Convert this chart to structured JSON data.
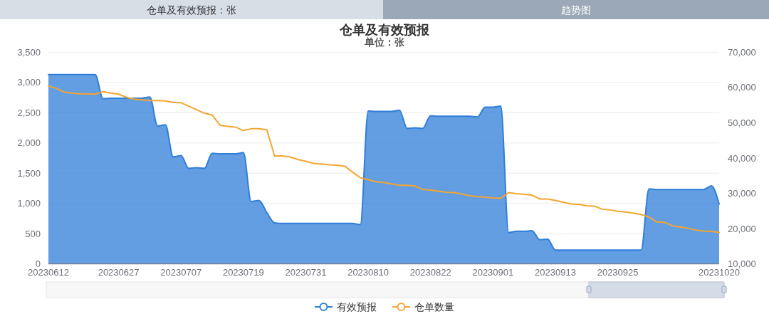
{
  "chart_data": {
    "type": "area",
    "title": "仓单及有效预报",
    "subtitle": "单位：张",
    "annotations": [
      "仓单及有效预报：张",
      "趋势图"
    ],
    "categories": [
      "20230612",
      null,
      null,
      null,
      null,
      null,
      null,
      null,
      null,
      "20230627",
      null,
      null,
      null,
      null,
      null,
      null,
      null,
      "20230707",
      null,
      null,
      null,
      null,
      null,
      null,
      null,
      "20230719",
      null,
      null,
      null,
      null,
      null,
      null,
      null,
      "20230731",
      null,
      null,
      null,
      null,
      null,
      null,
      null,
      "20230810",
      null,
      null,
      null,
      null,
      null,
      null,
      null,
      "20230822",
      null,
      null,
      null,
      null,
      null,
      null,
      null,
      "20230901",
      null,
      null,
      null,
      null,
      null,
      null,
      null,
      "20230913",
      null,
      null,
      null,
      null,
      null,
      null,
      null,
      "20230925",
      null,
      null,
      null,
      null,
      null,
      null,
      null,
      null,
      null,
      null,
      null,
      null,
      "20231020"
    ],
    "series": [
      {
        "name": "有效预报",
        "color": "#2f7ed8",
        "values": [
          3130,
          3130,
          3130,
          3130,
          3130,
          3130,
          3130,
          2730,
          2740,
          2740,
          2740,
          2740,
          2740,
          2760,
          2280,
          2300,
          1770,
          1790,
          1580,
          1590,
          1580,
          1830,
          1820,
          1820,
          1820,
          1840,
          1030,
          1050,
          850,
          680,
          670,
          670,
          670,
          670,
          670,
          670,
          670,
          670,
          670,
          670,
          650,
          2530,
          2520,
          2520,
          2520,
          2540,
          2240,
          2250,
          2240,
          2450,
          2440,
          2440,
          2440,
          2440,
          2440,
          2430,
          2590,
          2590,
          2610,
          520,
          540,
          540,
          550,
          400,
          410,
          230,
          230,
          230,
          230,
          230,
          230,
          230,
          230,
          230,
          230,
          230,
          230,
          1240,
          1230,
          1230,
          1230,
          1230,
          1230,
          1230,
          1230,
          1290,
          990
        ]
      },
      {
        "name": "仓单数量",
        "type": "line",
        "axis": "y2",
        "color": "#f6a530",
        "values": [
          60400,
          59800,
          58700,
          58400,
          58200,
          58200,
          58100,
          58800,
          58400,
          58100,
          57200,
          56700,
          56500,
          56300,
          56300,
          56200,
          55800,
          55700,
          54700,
          53700,
          52700,
          52200,
          49300,
          49000,
          48800,
          47800,
          48300,
          48300,
          48000,
          40600,
          40600,
          40300,
          39600,
          39100,
          38500,
          38300,
          38100,
          38000,
          37700,
          36000,
          34400,
          33900,
          33300,
          33100,
          32700,
          32300,
          32300,
          32100,
          31100,
          30900,
          30600,
          30300,
          30200,
          29800,
          29300,
          29100,
          28900,
          28700,
          28600,
          30200,
          29900,
          29700,
          29500,
          28400,
          28400,
          28000,
          27500,
          27000,
          26900,
          26500,
          26400,
          25500,
          25300,
          24900,
          24700,
          24400,
          24000,
          23300,
          21900,
          21800,
          20800,
          20500,
          20100,
          19600,
          19300,
          19200,
          18900
        ]
      }
    ],
    "ylim": [
      0,
      3500
    ],
    "yticks": [
      0,
      {
        "value": 500,
        "label": "500"
      },
      {
        "value": 1000,
        "label": "1,000"
      },
      {
        "value": 1500,
        "label": "1,500"
      },
      {
        "value": 2000,
        "label": "2,000"
      },
      {
        "value": 2500,
        "label": "2,500"
      },
      {
        "value": 3000,
        "label": "3,000"
      },
      {
        "value": 3500,
        "label": "3,500"
      }
    ],
    "y2lim": [
      10000,
      70000
    ],
    "y2ticks": [
      {
        "value": 10000,
        "label": "10,000"
      },
      {
        "value": 20000,
        "label": "20,000"
      },
      {
        "value": 30000,
        "label": "30,000"
      },
      {
        "value": 40000,
        "label": "40,000"
      },
      {
        "value": 50000,
        "label": "50,000"
      },
      {
        "value": 60000,
        "label": "60,000"
      },
      {
        "value": 70000,
        "label": "70,000"
      }
    ],
    "grid": "y",
    "legend": "bottom"
  }
}
